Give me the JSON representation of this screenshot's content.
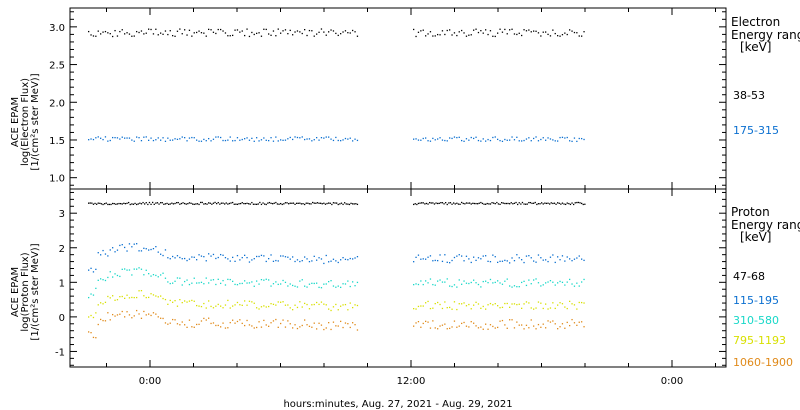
{
  "chart_data": {
    "type": "scatter",
    "xlabel": "hours:minutes, Aug. 27, 2021 - Aug. 29, 2021",
    "x_tick_labels": [
      "0:00",
      "12:00",
      "0:00"
    ],
    "panels": [
      {
        "ylabel_lines": [
          "ACE EPAM",
          "log(Electron Flux)",
          "[1/(cm²s ster MeV)]"
        ],
        "ylim": [
          0.85,
          3.25
        ],
        "y_tick_labels": [
          "1.0",
          "1.5",
          "2.0",
          "2.5",
          "3.0"
        ],
        "legend_title": [
          "Electron",
          "Energy range",
          "[keV]"
        ],
        "series": [
          {
            "name": "38-53",
            "color": "#000000",
            "base": 2.93,
            "amp": 0.05
          },
          {
            "name": "175-315",
            "color": "#0a6fd0",
            "base": 1.52,
            "amp": 0.03
          }
        ]
      },
      {
        "ylabel_lines": [
          "ACE EPAM",
          "log(Proton Flux)",
          "[1/(cm²s ster MeV)]"
        ],
        "ylim": [
          -1.45,
          3.7
        ],
        "y_tick_labels": [
          "-1",
          "0",
          "1",
          "2",
          "3"
        ],
        "legend_title": [
          "Proton",
          "Energy range",
          "[keV]"
        ],
        "series": [
          {
            "name": "47-68",
            "color": "#000000",
            "base": 3.3,
            "amp": 0.03
          },
          {
            "name": "115-195",
            "color": "#0a6fd0",
            "base": 1.7,
            "amp": 0.12
          },
          {
            "name": "310-580",
            "color": "#18d8c8",
            "base": 1.0,
            "amp": 0.12
          },
          {
            "name": "795-1193",
            "color": "#d8e000",
            "base": 0.35,
            "amp": 0.12
          },
          {
            "name": "1060-1900",
            "color": "#e08a1a",
            "base": -0.2,
            "amp": 0.14
          }
        ]
      }
    ]
  }
}
